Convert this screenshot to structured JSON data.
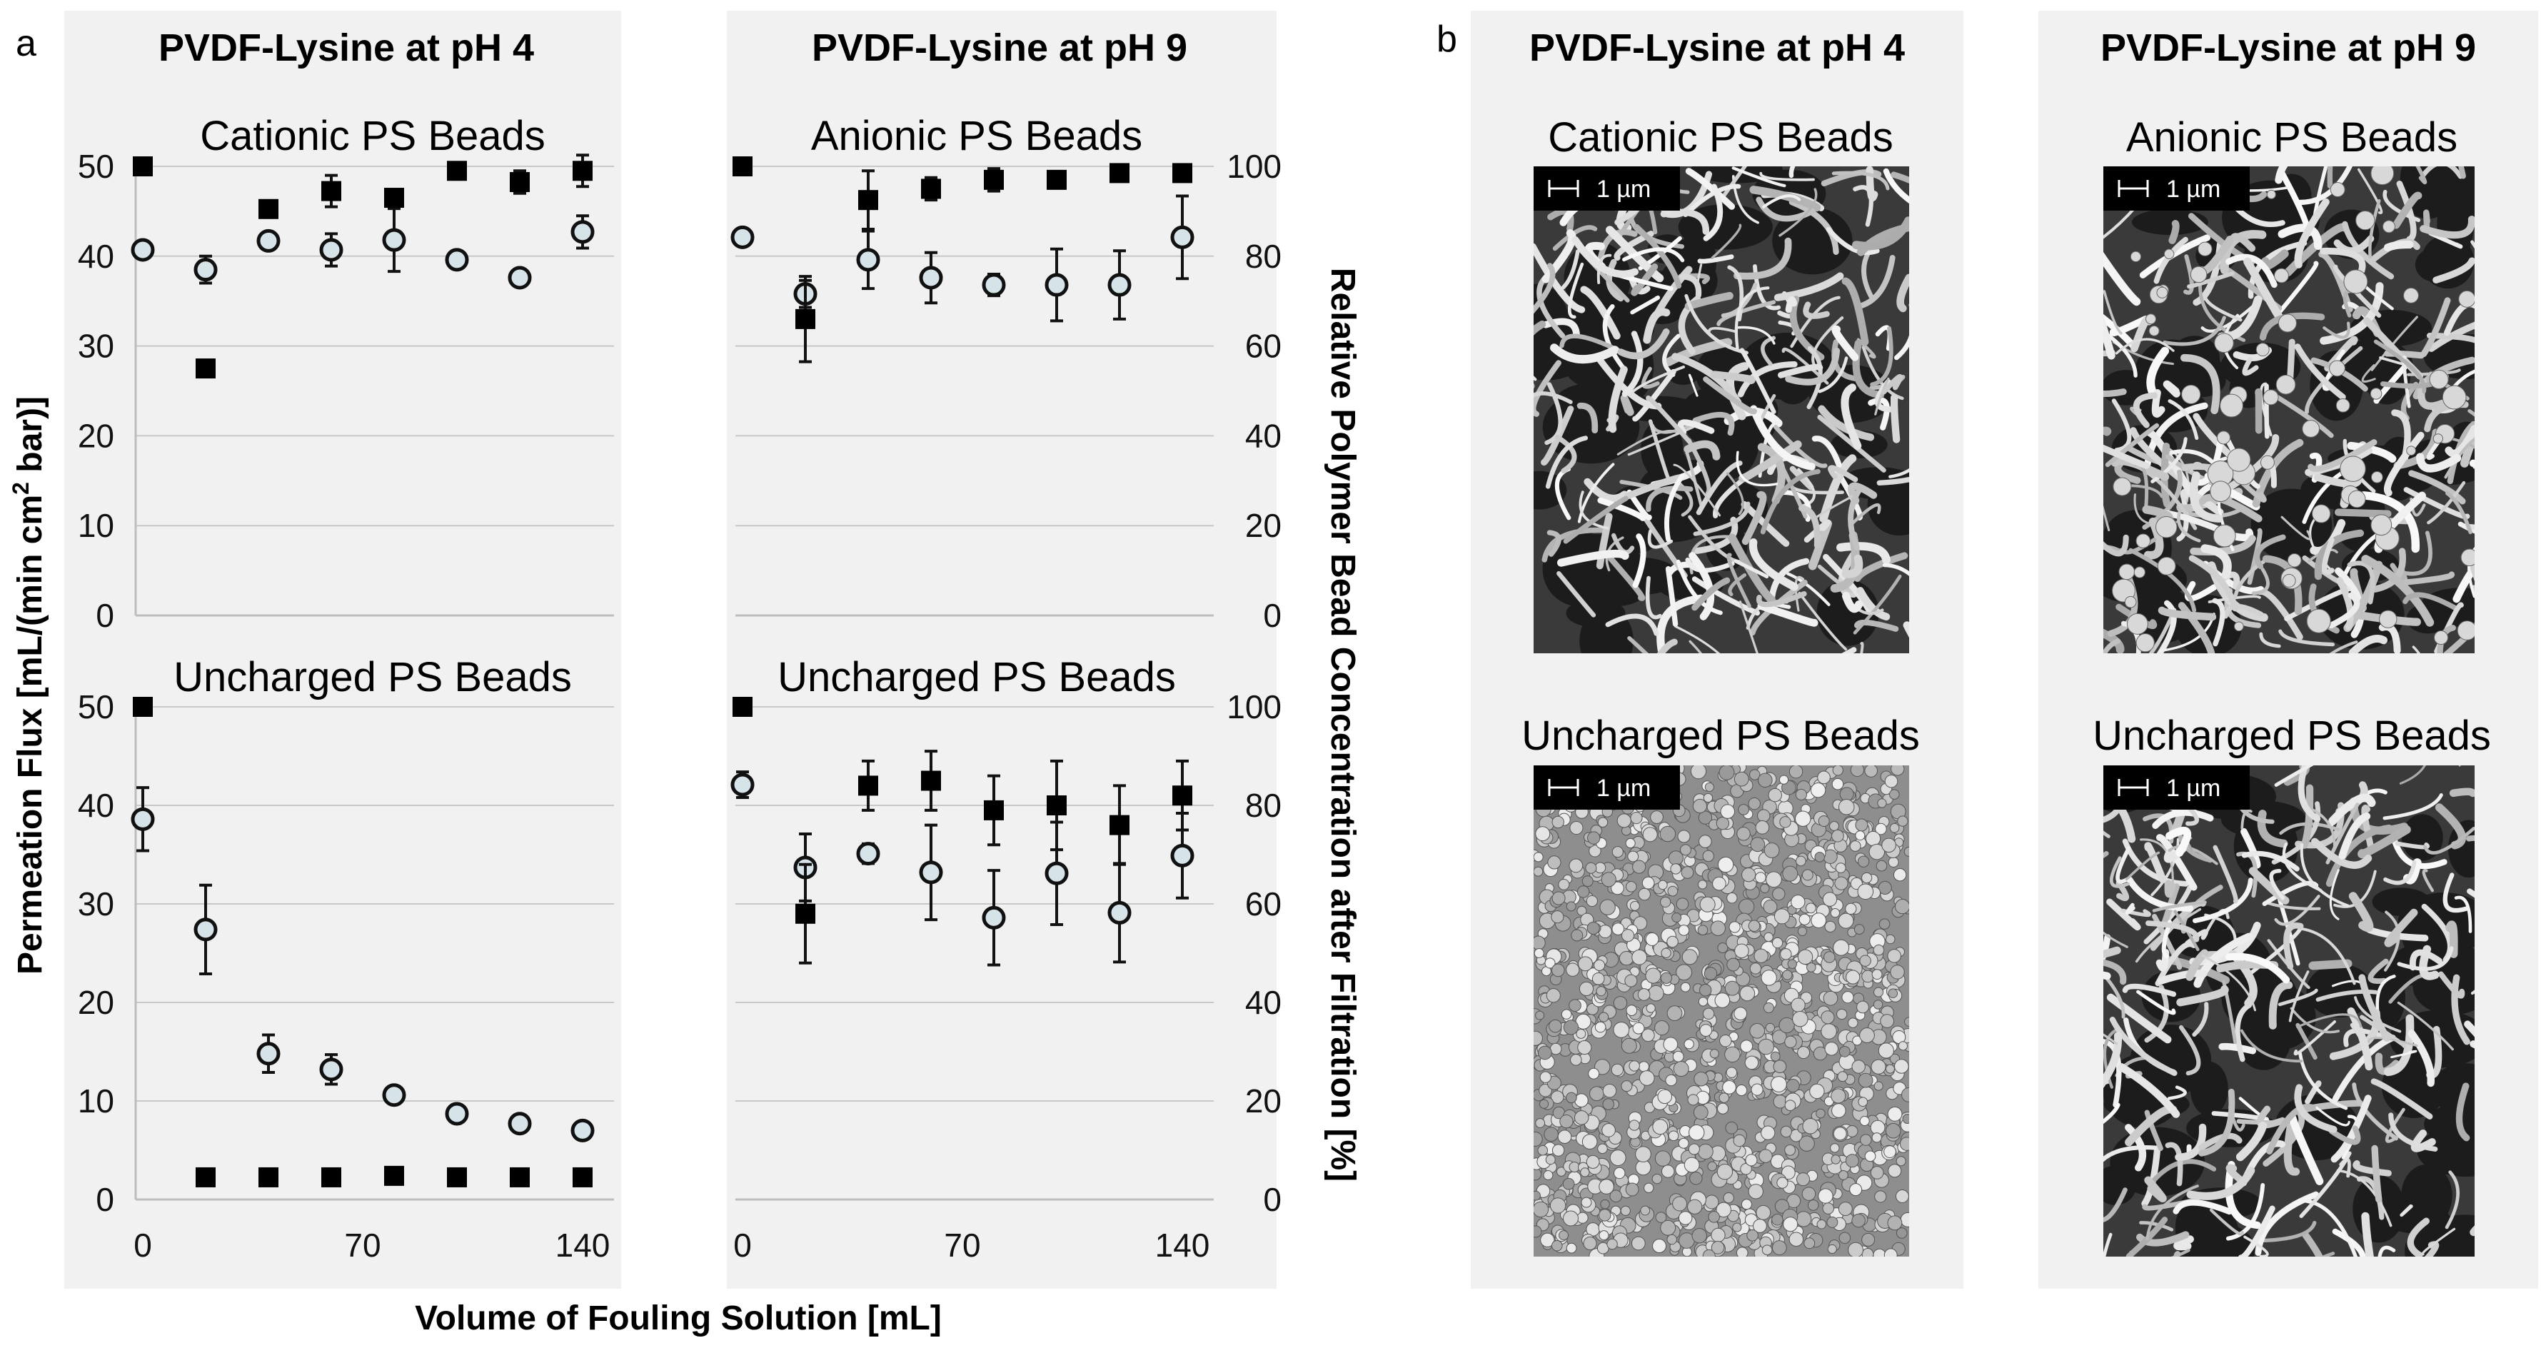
{
  "panel_letters": {
    "a": "a",
    "b": "b"
  },
  "axis_labels": {
    "left_prefix": "Permeation  Flux [mL/(min cm",
    "left_sup": "2",
    "left_suffix": " bar)]",
    "right": "Relative Polymer Bead Concentration after Filtration [%]",
    "x": "Volume of Fouling Solution [mL]"
  },
  "panel_a": {
    "columns": [
      "PVDF-Lysine at pH 4",
      "PVDF-Lysine at pH 9"
    ],
    "subtitles": [
      "Cationic PS Beads",
      "Anionic PS Beads",
      "Uncharged PS Beads",
      "Uncharged PS Beads"
    ]
  },
  "panel_b": {
    "columns": [
      "PVDF-Lysine at pH 4",
      "PVDF-Lysine at pH 9"
    ],
    "subtitles": [
      "Cationic PS Beads",
      "Anionic PS Beads",
      "Uncharged PS Beads",
      "Uncharged PS Beads"
    ],
    "scale_bar": "1 µm",
    "image_styles": [
      "porous-network",
      "porous-network-with-beads",
      "bead-covered",
      "porous-network"
    ]
  },
  "chart_data": [
    {
      "type": "scatter",
      "column_title": "PVDF-Lysine at pH 4",
      "title": "Cationic PS Beads",
      "x_ticks": [
        "0",
        "70",
        "140"
      ],
      "xlim": [
        0,
        150
      ],
      "y_left_ticks": [
        "0",
        "10",
        "20",
        "30",
        "40",
        "50"
      ],
      "ylim_left": [
        0,
        50
      ],
      "series": [
        {
          "axis": "left",
          "marker": "open-circle",
          "x": [
            0,
            20,
            40,
            60,
            80,
            100,
            120,
            140
          ],
          "values": [
            40.7,
            38.5,
            41.7,
            40.7,
            41.8,
            39.6,
            37.6,
            42.7
          ],
          "errors": [
            0.6,
            1.5,
            0.7,
            1.8,
            3.5,
            0.5,
            0.7,
            1.8
          ]
        },
        {
          "axis": "right",
          "marker": "filled-square",
          "x": [
            0,
            20,
            40,
            60,
            80,
            100,
            120,
            140
          ],
          "values": [
            100,
            55,
            90.5,
            94.5,
            93,
            99,
            96.5,
            99
          ],
          "errors": [
            0,
            0,
            0,
            3.5,
            0,
            0,
            2.5,
            3.5
          ]
        }
      ]
    },
    {
      "type": "scatter",
      "column_title": "PVDF-Lysine at pH 9",
      "title": "Anionic PS Beads",
      "x_ticks": [
        "0",
        "70",
        "140"
      ],
      "xlim": [
        0,
        150
      ],
      "y_right_ticks": [
        "0",
        "20",
        "40",
        "60",
        "80",
        "100"
      ],
      "ylim_right": [
        0,
        100
      ],
      "series": [
        {
          "axis": "left",
          "marker": "open-circle",
          "x": [
            0,
            20,
            40,
            60,
            80,
            100,
            120,
            140
          ],
          "values": [
            42.1,
            35.8,
            39.6,
            37.6,
            36.8,
            36.8,
            36.8,
            42.1
          ],
          "errors": [
            0,
            1.5,
            3.2,
            2.8,
            1.2,
            4.0,
            3.8,
            4.6
          ]
        },
        {
          "axis": "right",
          "marker": "filled-square",
          "x": [
            0,
            20,
            40,
            60,
            80,
            100,
            120,
            140
          ],
          "values": [
            100,
            66,
            92.5,
            95,
            97,
            97,
            98.5,
            98.5
          ],
          "errors": [
            0,
            9.5,
            6.5,
            2.5,
            2.5,
            0,
            0,
            0
          ]
        }
      ]
    },
    {
      "type": "scatter",
      "column_title": "PVDF-Lysine at pH 4",
      "title": "Uncharged PS Beads",
      "x_ticks": [
        "0",
        "70",
        "140"
      ],
      "xlim": [
        0,
        150
      ],
      "y_left_ticks": [
        "0",
        "10",
        "20",
        "30",
        "40",
        "50"
      ],
      "ylim_left": [
        0,
        50
      ],
      "series": [
        {
          "axis": "left",
          "marker": "open-circle",
          "x": [
            0,
            20,
            40,
            60,
            80,
            100,
            120,
            140
          ],
          "values": [
            38.6,
            27.4,
            14.8,
            13.2,
            10.6,
            8.7,
            7.7,
            7.0
          ],
          "errors": [
            3.2,
            4.5,
            1.9,
            1.5,
            0.6,
            0.6,
            0.5,
            0.6
          ]
        },
        {
          "axis": "right",
          "marker": "filled-square",
          "x": [
            0,
            20,
            40,
            60,
            80,
            100,
            120,
            140
          ],
          "values": [
            100,
            4.5,
            4.5,
            4.5,
            4.8,
            4.5,
            4.5,
            4.5
          ],
          "errors": [
            0,
            0,
            0,
            0,
            0,
            0,
            0,
            0
          ]
        }
      ]
    },
    {
      "type": "scatter",
      "column_title": "PVDF-Lysine at pH 9",
      "title": "Uncharged PS Beads",
      "x_ticks": [
        "0",
        "70",
        "140"
      ],
      "xlim": [
        0,
        150
      ],
      "y_right_ticks": [
        "0",
        "20",
        "40",
        "60",
        "80",
        "100"
      ],
      "ylim_right": [
        0,
        100
      ],
      "series": [
        {
          "axis": "left",
          "marker": "open-circle",
          "x": [
            0,
            20,
            40,
            60,
            80,
            100,
            120,
            140
          ],
          "values": [
            42.1,
            33.7,
            35.1,
            33.2,
            28.6,
            33.1,
            29.1,
            34.9
          ],
          "errors": [
            1.3,
            3.4,
            1.0,
            4.8,
            4.8,
            5.2,
            5.0,
            4.3
          ]
        },
        {
          "axis": "right",
          "marker": "filled-square",
          "x": [
            0,
            20,
            40,
            60,
            80,
            100,
            120,
            140
          ],
          "values": [
            100,
            58,
            84,
            85,
            79,
            80,
            76,
            82
          ],
          "errors": [
            0,
            10,
            5,
            6,
            7,
            9,
            8,
            7
          ]
        }
      ]
    }
  ]
}
